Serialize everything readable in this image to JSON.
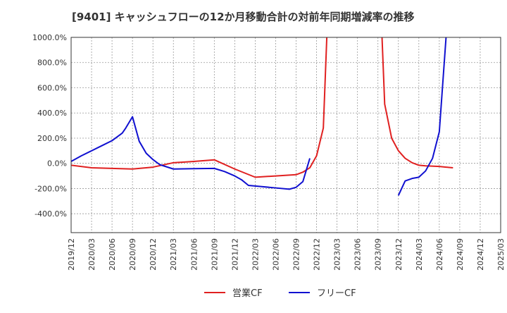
{
  "chart_data": {
    "type": "line",
    "title": "[9401]  キャッシュフローの12か月移動合計の対前年同期増減率の推移",
    "xlabel": "",
    "ylabel": "",
    "ylim": [
      -550,
      1000
    ],
    "y_ticks": [
      1000,
      800,
      600,
      400,
      200,
      0,
      -200,
      -400
    ],
    "y_tick_labels": [
      "1000.0%",
      "800.0%",
      "600.0%",
      "400.0%",
      "200.0%",
      "0.0%",
      "-200.0%",
      "-400.0%"
    ],
    "x_tick_labels": [
      "2019/12",
      "2020/03",
      "2020/06",
      "2020/09",
      "2020/12",
      "2021/03",
      "2021/06",
      "2021/09",
      "2021/12",
      "2022/03",
      "2022/06",
      "2022/09",
      "2022/12",
      "2023/03",
      "2023/06",
      "2023/09",
      "2023/12",
      "2024/03",
      "2024/06",
      "2024/09",
      "2024/12",
      "2025/03"
    ],
    "grid": true,
    "legend_position": "bottom-center",
    "series": [
      {
        "name": "営業CF",
        "color": "#e02020",
        "points": [
          [
            0,
            -15
          ],
          [
            1,
            -35
          ],
          [
            2,
            -40
          ],
          [
            3,
            -45
          ],
          [
            4,
            -30
          ],
          [
            5,
            5
          ],
          [
            6,
            15
          ],
          [
            7,
            28
          ],
          [
            8,
            -45
          ],
          [
            9,
            -110
          ],
          [
            10,
            -100
          ],
          [
            11,
            -90
          ],
          [
            11.33,
            -70
          ],
          [
            11.67,
            -35
          ],
          [
            12,
            60
          ],
          [
            12.33,
            280
          ],
          [
            12.5,
            1000
          ],
          null,
          [
            15.2,
            1000
          ],
          [
            15.33,
            470
          ],
          [
            15.67,
            200
          ],
          [
            16,
            100
          ],
          [
            16.33,
            40
          ],
          [
            16.67,
            5
          ],
          [
            17,
            -15
          ],
          [
            17.33,
            -20
          ],
          [
            18,
            -25
          ],
          [
            18.33,
            -30
          ],
          [
            18.67,
            -35
          ]
        ]
      },
      {
        "name": "フリーCF",
        "color": "#1010d0",
        "points": [
          [
            0,
            15
          ],
          [
            0.5,
            60
          ],
          [
            1,
            100
          ],
          [
            1.5,
            140
          ],
          [
            2,
            180
          ],
          [
            2.5,
            240
          ],
          [
            2.67,
            280
          ],
          [
            3,
            370
          ],
          [
            3.33,
            175
          ],
          [
            3.67,
            80
          ],
          [
            4,
            30
          ],
          [
            4.33,
            -10
          ],
          [
            5,
            -45
          ],
          [
            6,
            -42
          ],
          [
            7,
            -40
          ],
          [
            7.5,
            -65
          ],
          [
            8,
            -100
          ],
          [
            8.33,
            -130
          ],
          [
            8.67,
            -175
          ],
          [
            9.33,
            -185
          ],
          [
            10,
            -195
          ],
          [
            10.67,
            -205
          ],
          [
            11,
            -190
          ],
          [
            11.33,
            -145
          ],
          [
            11.67,
            40
          ],
          null,
          [
            16,
            -255
          ],
          [
            16.33,
            -140
          ],
          [
            16.67,
            -120
          ],
          [
            17,
            -110
          ],
          [
            17.33,
            -60
          ],
          [
            17.67,
            40
          ],
          [
            18,
            250
          ],
          [
            18.33,
            1000
          ]
        ]
      }
    ]
  },
  "legend": {
    "items": [
      {
        "label": "営業CF",
        "color": "#e02020"
      },
      {
        "label": "フリーCF",
        "color": "#1010d0"
      }
    ]
  }
}
